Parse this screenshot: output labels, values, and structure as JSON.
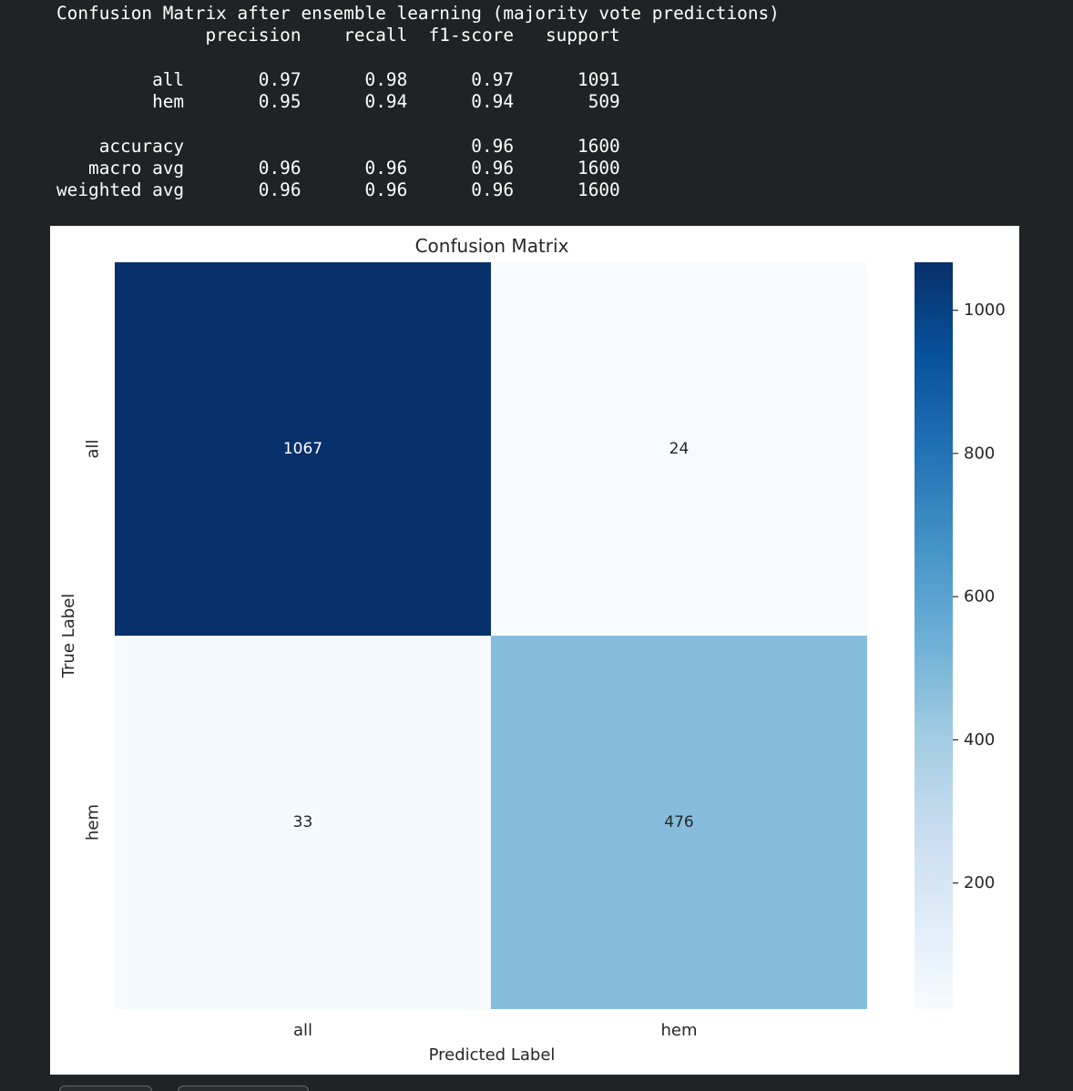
{
  "report": {
    "title": "Confusion Matrix after ensemble learning (majority vote predictions)",
    "header": "              precision    recall  f1-score   support",
    "rows": [
      "",
      "         all       0.97      0.98      0.97      1091",
      "         hem       0.95      0.94      0.94       509",
      "",
      "    accuracy                           0.96      1600",
      "   macro avg       0.96      0.96      0.96      1600",
      "weighted avg       0.96      0.96      0.96      1600"
    ]
  },
  "chart_data": {
    "type": "heatmap",
    "title": "Confusion Matrix",
    "xlabel": "Predicted Label",
    "ylabel": "True Label",
    "x_categories": [
      "all",
      "hem"
    ],
    "y_categories": [
      "all",
      "hem"
    ],
    "values": [
      [
        1067,
        24
      ],
      [
        33,
        476
      ]
    ],
    "colormap": "Blues",
    "color_range": [
      24,
      1067
    ],
    "colorbar_ticks": [
      200,
      400,
      600,
      800,
      1000
    ],
    "colors": {
      "low": "#f7fbff",
      "high": "#08306b",
      "text_on_dark": "#ffffff",
      "text_on_light": "#262626"
    }
  }
}
